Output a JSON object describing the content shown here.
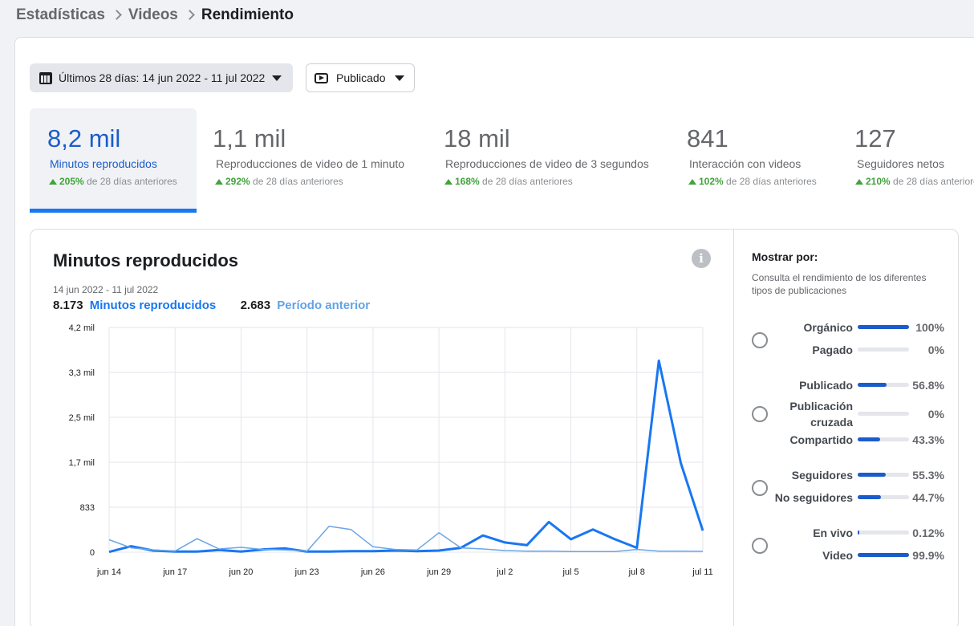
{
  "breadcrumb": [
    "Estadísticas",
    "Videos",
    "Rendimiento"
  ],
  "filters": {
    "date_range": "Últimos 28 días: 14 jun 2022 - 11 jul 2022",
    "status": "Publicado"
  },
  "metrics": [
    {
      "value": "8,2 mil",
      "label": "Minutos reproducidos",
      "pct": "205%",
      "suffix": "de 28 días anteriores",
      "active": true
    },
    {
      "value": "1,1 mil",
      "label": "Reproducciones de video de 1 minuto",
      "pct": "292%",
      "suffix": "de 28 días anteriores"
    },
    {
      "value": "18 mil",
      "label": "Reproducciones de video de 3 segundos",
      "pct": "168%",
      "suffix": "de 28 días anteriores"
    },
    {
      "value": "841",
      "label": "Interacción con videos",
      "pct": "102%",
      "suffix": "de 28 días anteriores"
    },
    {
      "value": "127",
      "label": "Seguidores netos",
      "pct": "210%",
      "suffix": "de 28 días anteriores"
    }
  ],
  "chart_card": {
    "title": "Minutos reproducidos",
    "date_range": "14 jun 2022 - 11 jul 2022",
    "legend_current_value": "8.173",
    "legend_current_label": "Minutos reproducidos",
    "legend_previous_value": "2.683",
    "legend_previous_label": "Período anterior"
  },
  "chart_data": {
    "type": "line",
    "ytick_labels": [
      "0",
      "833",
      "1,7 mil",
      "2,5 mil",
      "3,3 mil",
      "4,2 mil"
    ],
    "ytick_values": [
      0,
      833,
      1666,
      2500,
      3333,
      4166
    ],
    "ylim": [
      0,
      4166
    ],
    "xtick_labels": [
      "jun 14",
      "jun 17",
      "jun 20",
      "jun 23",
      "jun 26",
      "jun 29",
      "jul 2",
      "jul 5",
      "jul 8",
      "jul 11"
    ],
    "x": [
      "jun 14",
      "jun 15",
      "jun 16",
      "jun 17",
      "jun 18",
      "jun 19",
      "jun 20",
      "jun 21",
      "jun 22",
      "jun 23",
      "jun 24",
      "jun 25",
      "jun 26",
      "jun 27",
      "jun 28",
      "jun 29",
      "jun 30",
      "jul 1",
      "jul 2",
      "jul 3",
      "jul 4",
      "jul 5",
      "jul 6",
      "jul 7",
      "jul 8",
      "jul 9",
      "jul 10",
      "jul 11"
    ],
    "grid": true,
    "series": [
      {
        "name": "Minutos reproducidos",
        "color": "#1877f2",
        "values": [
          5,
          110,
          30,
          10,
          10,
          40,
          10,
          50,
          70,
          10,
          10,
          20,
          20,
          30,
          20,
          30,
          80,
          310,
          180,
          130,
          560,
          240,
          420,
          240,
          80,
          3550,
          1650,
          400
        ]
      },
      {
        "name": "Período anterior",
        "color": "#6aa6e6",
        "values": [
          230,
          80,
          40,
          20,
          250,
          60,
          90,
          50,
          40,
          20,
          480,
          420,
          100,
          50,
          40,
          360,
          80,
          60,
          30,
          20,
          20,
          10,
          10,
          10,
          50,
          20,
          20,
          15
        ]
      }
    ]
  },
  "sidebar": {
    "title": "Mostrar por:",
    "description": "Consulta el rendimiento de los diferentes tipos de publicaciones",
    "groups": [
      {
        "rows": [
          {
            "label": "Orgánico",
            "value": "100%",
            "pct": 100
          },
          {
            "label": "Pagado",
            "value": "0%",
            "pct": 0
          }
        ]
      },
      {
        "rows": [
          {
            "label": "Publicado",
            "value": "56.8%",
            "pct": 56.8
          },
          {
            "label": "Publicación cruzada",
            "value": "0%",
            "pct": 0
          },
          {
            "label": "Compartido",
            "value": "43.3%",
            "pct": 43.3
          }
        ]
      },
      {
        "rows": [
          {
            "label": "Seguidores",
            "value": "55.3%",
            "pct": 55.3
          },
          {
            "label": "No seguidores",
            "value": "44.7%",
            "pct": 44.7
          }
        ]
      },
      {
        "rows": [
          {
            "label": "En vivo",
            "value": "0.12%",
            "pct": 0.12
          },
          {
            "label": "Video",
            "value": "99.9%",
            "pct": 99.9
          }
        ]
      }
    ]
  }
}
